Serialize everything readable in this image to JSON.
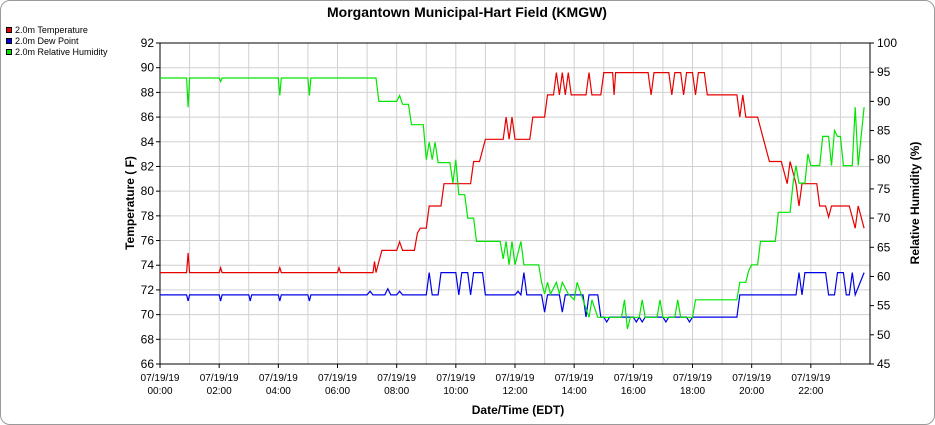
{
  "chart_data": {
    "type": "line",
    "title": "Morgantown Municipal-Hart Field (KMGW)",
    "xlabel": "Date/Time (EDT)",
    "ylabel": "Temperature ( F)",
    "y2label": "Relative Humidity (%)",
    "xlim": [
      0,
      24
    ],
    "ylim": [
      66,
      92
    ],
    "y2lim": [
      45,
      100
    ],
    "grid": true,
    "legend_position": "top-left-outside",
    "x_ticks": [
      {
        "x": 0,
        "date": "07/19/19",
        "time": "00:00"
      },
      {
        "x": 2,
        "date": "07/19/19",
        "time": "02:00"
      },
      {
        "x": 4,
        "date": "07/19/19",
        "time": "04:00"
      },
      {
        "x": 6,
        "date": "07/19/19",
        "time": "06:00"
      },
      {
        "x": 8,
        "date": "07/19/19",
        "time": "08:00"
      },
      {
        "x": 10,
        "date": "07/19/19",
        "time": "10:00"
      },
      {
        "x": 12,
        "date": "07/19/19",
        "time": "12:00"
      },
      {
        "x": 14,
        "date": "07/19/19",
        "time": "14:00"
      },
      {
        "x": 16,
        "date": "07/19/19",
        "time": "16:00"
      },
      {
        "x": 18,
        "date": "07/19/19",
        "time": "18:00"
      },
      {
        "x": 20,
        "date": "07/19/19",
        "time": "20:00"
      },
      {
        "x": 22,
        "date": "07/19/19",
        "time": "22:00"
      }
    ],
    "y_ticks": [
      "66",
      "68",
      "70",
      "72",
      "74",
      "76",
      "78",
      "80",
      "82",
      "84",
      "86",
      "88",
      "90",
      "92"
    ],
    "y2_ticks": [
      "45",
      "50",
      "55",
      "60",
      "65",
      "70",
      "75",
      "80",
      "85",
      "90",
      "95",
      "100"
    ],
    "series": [
      {
        "name": "2.0m Temperature",
        "color": "#e60000",
        "axis": "left",
        "points": [
          [
            0,
            73.4
          ],
          [
            0.9,
            73.4
          ],
          [
            0.95,
            75.0
          ],
          [
            1.0,
            73.4
          ],
          [
            2.0,
            73.4
          ],
          [
            2.05,
            73.8
          ],
          [
            2.1,
            73.4
          ],
          [
            4.0,
            73.4
          ],
          [
            4.05,
            73.8
          ],
          [
            4.1,
            73.4
          ],
          [
            6.0,
            73.4
          ],
          [
            6.05,
            73.8
          ],
          [
            6.1,
            73.4
          ],
          [
            7.2,
            73.4
          ],
          [
            7.25,
            74.3
          ],
          [
            7.3,
            73.4
          ],
          [
            7.4,
            74.3
          ],
          [
            7.5,
            75.2
          ],
          [
            8.0,
            75.2
          ],
          [
            8.1,
            75.9
          ],
          [
            8.2,
            75.2
          ],
          [
            8.6,
            75.2
          ],
          [
            8.7,
            76.6
          ],
          [
            8.8,
            77.0
          ],
          [
            9.0,
            77.0
          ],
          [
            9.1,
            78.8
          ],
          [
            9.5,
            78.8
          ],
          [
            9.6,
            80.6
          ],
          [
            10.5,
            80.6
          ],
          [
            10.6,
            82.4
          ],
          [
            10.8,
            82.4
          ],
          [
            11.0,
            84.2
          ],
          [
            11.6,
            84.2
          ],
          [
            11.7,
            86.0
          ],
          [
            11.8,
            84.2
          ],
          [
            11.9,
            86.0
          ],
          [
            12.0,
            84.2
          ],
          [
            12.5,
            84.2
          ],
          [
            12.6,
            86.0
          ],
          [
            13.0,
            86.0
          ],
          [
            13.1,
            87.8
          ],
          [
            13.3,
            87.8
          ],
          [
            13.4,
            89.6
          ],
          [
            13.5,
            87.8
          ],
          [
            13.6,
            89.6
          ],
          [
            13.7,
            87.8
          ],
          [
            13.8,
            89.6
          ],
          [
            13.9,
            87.8
          ],
          [
            14.4,
            87.8
          ],
          [
            14.5,
            89.6
          ],
          [
            14.6,
            87.8
          ],
          [
            14.9,
            87.8
          ],
          [
            15.0,
            89.6
          ],
          [
            15.3,
            89.6
          ],
          [
            15.35,
            87.8
          ],
          [
            15.4,
            89.6
          ],
          [
            16.0,
            89.6
          ],
          [
            16.5,
            89.6
          ],
          [
            16.6,
            87.8
          ],
          [
            16.7,
            89.6
          ],
          [
            17.2,
            89.6
          ],
          [
            17.3,
            87.8
          ],
          [
            17.4,
            89.6
          ],
          [
            17.6,
            89.6
          ],
          [
            17.7,
            87.8
          ],
          [
            17.8,
            89.6
          ],
          [
            18.0,
            89.6
          ],
          [
            18.1,
            87.8
          ],
          [
            18.2,
            89.6
          ],
          [
            18.4,
            89.6
          ],
          [
            18.5,
            87.8
          ],
          [
            19.5,
            87.8
          ],
          [
            19.6,
            86.0
          ],
          [
            19.7,
            87.8
          ],
          [
            19.8,
            86.0
          ],
          [
            20.2,
            86.0
          ],
          [
            20.4,
            84.2
          ],
          [
            20.6,
            82.4
          ],
          [
            21.0,
            82.4
          ],
          [
            21.2,
            80.6
          ],
          [
            21.3,
            82.4
          ],
          [
            21.5,
            80.6
          ],
          [
            21.6,
            78.8
          ],
          [
            21.7,
            80.6
          ],
          [
            22.2,
            80.6
          ],
          [
            22.3,
            78.8
          ],
          [
            22.5,
            78.8
          ],
          [
            22.6,
            77.9
          ],
          [
            22.7,
            78.8
          ],
          [
            23.3,
            78.8
          ],
          [
            23.5,
            77.0
          ],
          [
            23.6,
            78.8
          ],
          [
            23.8,
            77.0
          ]
        ]
      },
      {
        "name": "2.0m Dew Point",
        "color": "#0000e6",
        "axis": "left",
        "points": [
          [
            0,
            71.6
          ],
          [
            0.9,
            71.6
          ],
          [
            0.95,
            71.1
          ],
          [
            1.0,
            71.6
          ],
          [
            2.0,
            71.6
          ],
          [
            2.05,
            71.1
          ],
          [
            2.1,
            71.6
          ],
          [
            3.0,
            71.6
          ],
          [
            3.05,
            71.1
          ],
          [
            3.1,
            71.6
          ],
          [
            4.0,
            71.6
          ],
          [
            4.05,
            71.1
          ],
          [
            4.1,
            71.6
          ],
          [
            5.0,
            71.6
          ],
          [
            5.05,
            71.1
          ],
          [
            5.1,
            71.6
          ],
          [
            7.0,
            71.6
          ],
          [
            7.1,
            71.9
          ],
          [
            7.2,
            71.6
          ],
          [
            7.6,
            71.6
          ],
          [
            7.7,
            72.1
          ],
          [
            7.8,
            71.6
          ],
          [
            8.0,
            71.6
          ],
          [
            8.1,
            71.9
          ],
          [
            8.2,
            71.6
          ],
          [
            9.0,
            71.6
          ],
          [
            9.1,
            73.4
          ],
          [
            9.2,
            71.6
          ],
          [
            9.4,
            71.6
          ],
          [
            9.5,
            73.4
          ],
          [
            10.0,
            73.4
          ],
          [
            10.1,
            71.6
          ],
          [
            10.2,
            73.4
          ],
          [
            10.4,
            73.4
          ],
          [
            10.5,
            71.6
          ],
          [
            10.6,
            73.4
          ],
          [
            10.9,
            73.4
          ],
          [
            11.0,
            71.6
          ],
          [
            12.0,
            71.6
          ],
          [
            12.1,
            71.9
          ],
          [
            12.2,
            71.6
          ],
          [
            12.3,
            73.4
          ],
          [
            12.4,
            71.6
          ],
          [
            12.9,
            71.6
          ],
          [
            13.0,
            70.2
          ],
          [
            13.1,
            71.6
          ],
          [
            13.5,
            71.6
          ],
          [
            13.6,
            70.2
          ],
          [
            13.7,
            71.6
          ],
          [
            14.3,
            71.6
          ],
          [
            14.4,
            69.8
          ],
          [
            14.5,
            71.6
          ],
          [
            14.8,
            71.6
          ],
          [
            14.9,
            69.8
          ],
          [
            15.0,
            69.8
          ],
          [
            15.1,
            69.4
          ],
          [
            15.2,
            69.8
          ],
          [
            16.0,
            69.8
          ],
          [
            16.1,
            69.4
          ],
          [
            16.2,
            69.8
          ],
          [
            16.3,
            69.4
          ],
          [
            16.4,
            69.8
          ],
          [
            17.0,
            69.8
          ],
          [
            17.1,
            69.4
          ],
          [
            17.2,
            69.8
          ],
          [
            17.8,
            69.8
          ],
          [
            17.9,
            69.4
          ],
          [
            18.0,
            69.8
          ],
          [
            19.0,
            69.8
          ],
          [
            19.5,
            69.8
          ],
          [
            19.6,
            71.6
          ],
          [
            21.5,
            71.6
          ],
          [
            21.6,
            73.4
          ],
          [
            21.7,
            71.6
          ],
          [
            21.8,
            73.4
          ],
          [
            22.5,
            73.4
          ],
          [
            22.6,
            71.6
          ],
          [
            22.8,
            71.6
          ],
          [
            22.9,
            73.4
          ],
          [
            23.1,
            73.4
          ],
          [
            23.2,
            71.6
          ],
          [
            23.3,
            71.6
          ],
          [
            23.4,
            73.4
          ],
          [
            23.5,
            71.6
          ],
          [
            23.8,
            73.4
          ]
        ]
      },
      {
        "name": "2.0m Relative Humidity",
        "color": "#00e600",
        "axis": "right",
        "points": [
          [
            0,
            94.0
          ],
          [
            0.9,
            94.0
          ],
          [
            0.95,
            89.0
          ],
          [
            1.0,
            94.0
          ],
          [
            2.0,
            94.0
          ],
          [
            2.05,
            93.4
          ],
          [
            2.1,
            94.0
          ],
          [
            4.0,
            94.0
          ],
          [
            4.05,
            91.0
          ],
          [
            4.1,
            94.0
          ],
          [
            5.0,
            94.0
          ],
          [
            5.05,
            91.0
          ],
          [
            5.1,
            94.0
          ],
          [
            7.3,
            94.0
          ],
          [
            7.4,
            90.0
          ],
          [
            8.0,
            90.0
          ],
          [
            8.1,
            91.0
          ],
          [
            8.2,
            89.5
          ],
          [
            8.4,
            89.5
          ],
          [
            8.5,
            86.0
          ],
          [
            8.9,
            86.0
          ],
          [
            9.0,
            80.0
          ],
          [
            9.1,
            83.0
          ],
          [
            9.2,
            80.0
          ],
          [
            9.3,
            83.0
          ],
          [
            9.4,
            79.5
          ],
          [
            9.8,
            79.5
          ],
          [
            9.9,
            76.0
          ],
          [
            10.0,
            80.0
          ],
          [
            10.1,
            74.0
          ],
          [
            10.3,
            74.0
          ],
          [
            10.4,
            70.0
          ],
          [
            10.6,
            70.0
          ],
          [
            10.7,
            66.0
          ],
          [
            11.5,
            66.0
          ],
          [
            11.6,
            63.0
          ],
          [
            11.7,
            66.0
          ],
          [
            11.8,
            62.0
          ],
          [
            11.9,
            66.0
          ],
          [
            12.0,
            62.0
          ],
          [
            12.2,
            66.0
          ],
          [
            12.3,
            62.0
          ],
          [
            12.8,
            62.0
          ],
          [
            12.9,
            59.0
          ],
          [
            13.0,
            57.0
          ],
          [
            13.1,
            59.0
          ],
          [
            13.2,
            57.0
          ],
          [
            13.4,
            59.0
          ],
          [
            13.5,
            57.0
          ],
          [
            13.6,
            59.0
          ],
          [
            13.8,
            57.0
          ],
          [
            14.0,
            56.0
          ],
          [
            14.1,
            59.0
          ],
          [
            14.3,
            56.0
          ],
          [
            14.5,
            53.0
          ],
          [
            14.6,
            56.0
          ],
          [
            14.8,
            53.0
          ],
          [
            15.0,
            53.0
          ],
          [
            15.6,
            53.0
          ],
          [
            15.7,
            56.0
          ],
          [
            15.8,
            51.0
          ],
          [
            15.9,
            53.0
          ],
          [
            16.2,
            53.0
          ],
          [
            16.3,
            56.0
          ],
          [
            16.4,
            53.0
          ],
          [
            16.8,
            53.0
          ],
          [
            16.9,
            56.0
          ],
          [
            17.0,
            53.0
          ],
          [
            17.4,
            53.0
          ],
          [
            17.5,
            56.0
          ],
          [
            17.6,
            53.0
          ],
          [
            18.0,
            53.0
          ],
          [
            18.1,
            56.0
          ],
          [
            19.5,
            56.0
          ],
          [
            19.6,
            59.0
          ],
          [
            19.8,
            59.0
          ],
          [
            19.9,
            61.0
          ],
          [
            20.0,
            62.0
          ],
          [
            20.2,
            62.0
          ],
          [
            20.3,
            66.0
          ],
          [
            20.8,
            66.0
          ],
          [
            20.9,
            71.0
          ],
          [
            21.3,
            71.0
          ],
          [
            21.4,
            76.0
          ],
          [
            21.5,
            79.0
          ],
          [
            21.6,
            76.0
          ],
          [
            21.8,
            76.0
          ],
          [
            21.9,
            81.0
          ],
          [
            22.0,
            79.0
          ],
          [
            22.3,
            79.0
          ],
          [
            22.4,
            84.0
          ],
          [
            22.6,
            84.0
          ],
          [
            22.7,
            79.0
          ],
          [
            22.8,
            85.0
          ],
          [
            22.9,
            84.0
          ],
          [
            23.0,
            84.0
          ],
          [
            23.1,
            79.0
          ],
          [
            23.4,
            79.0
          ],
          [
            23.5,
            89.0
          ],
          [
            23.6,
            79.0
          ],
          [
            23.8,
            89.0
          ]
        ]
      }
    ]
  }
}
